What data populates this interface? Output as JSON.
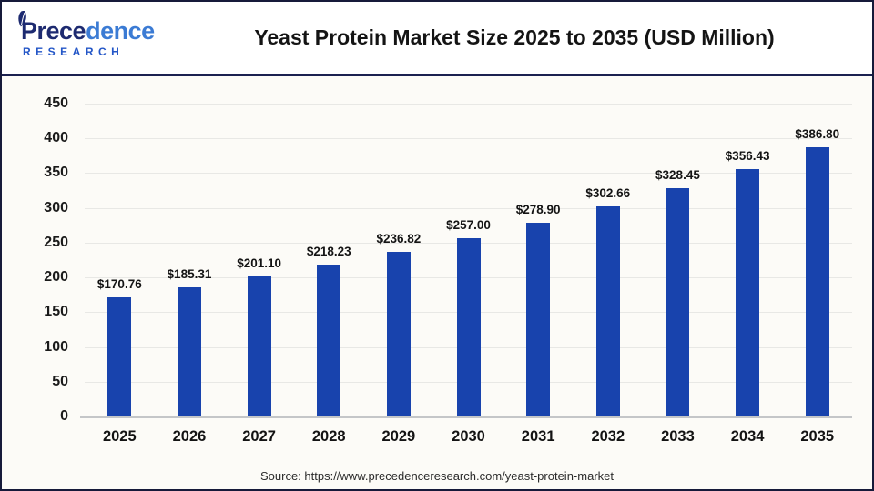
{
  "header": {
    "logo": {
      "word_dark": "Prece",
      "word_light": "dence",
      "subtitle": "RESEARCH"
    },
    "title": "Yeast Protein Market Size 2025 to 2035 (USD Million)"
  },
  "chart_data": {
    "type": "bar",
    "title": "Yeast Protein Market Size 2025 to 2035 (USD Million)",
    "unit": "USD Million",
    "categories": [
      "2025",
      "2026",
      "2027",
      "2028",
      "2029",
      "2030",
      "2031",
      "2032",
      "2033",
      "2034",
      "2035"
    ],
    "values": [
      170.76,
      185.31,
      201.1,
      218.23,
      236.82,
      257.0,
      278.9,
      302.66,
      328.45,
      356.43,
      386.8
    ],
    "value_labels": [
      "$170.76",
      "$185.31",
      "$201.10",
      "$218.23",
      "$236.82",
      "$257.00",
      "$278.90",
      "$302.66",
      "$328.45",
      "$356.43",
      "$386.80"
    ],
    "xlabel": "",
    "ylabel": "",
    "ylim": [
      0,
      450
    ],
    "yticks": [
      450,
      400,
      350,
      300,
      250,
      200,
      150,
      100,
      50,
      0
    ],
    "grid": true,
    "legend": false,
    "bar_color": "#1843ad"
  },
  "footer": {
    "source_text": "Source: https://www.precedenceresearch.com/yeast-protein-market"
  },
  "colors": {
    "bar": "#1843ad",
    "divider_navy": "#1b2150",
    "frame_border": "#161a3a",
    "gridline": "#e8e8e5",
    "axis_line": "#c4c6c8",
    "logo_dark": "#1d2a70",
    "logo_light": "#3b7bd4",
    "logo_sub": "#2356c7",
    "chart_bg": "#fcfbf7"
  }
}
